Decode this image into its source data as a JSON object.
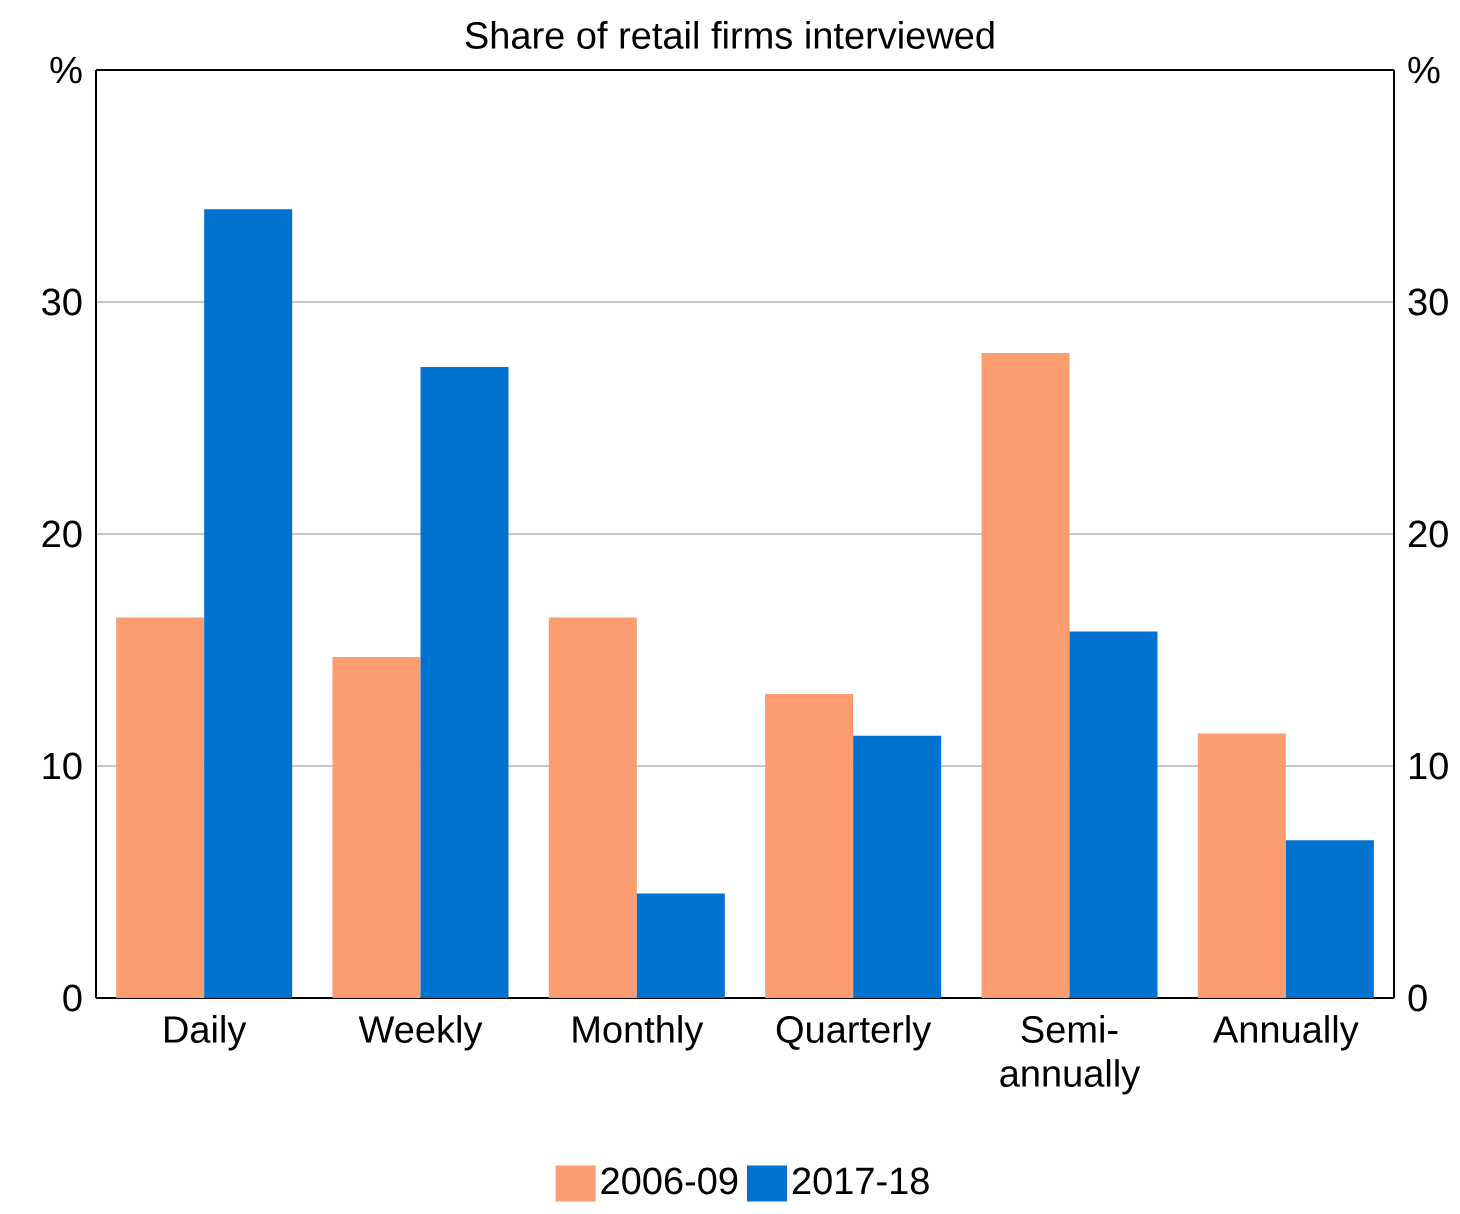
{
  "chart_data": {
    "type": "bar",
    "title": "Share of retail firms interviewed",
    "categories": [
      "Daily",
      "Weekly",
      "Monthly",
      "Quarterly",
      "Semi-annually",
      "Annually"
    ],
    "series": [
      {
        "name": "2006-09",
        "color": "#fb9d70",
        "values": [
          16.4,
          14.7,
          16.4,
          13.1,
          27.8,
          11.4
        ]
      },
      {
        "name": "2017-18",
        "color": "#0072cf",
        "values": [
          34.0,
          27.2,
          4.5,
          11.3,
          15.8,
          6.8
        ]
      }
    ],
    "ylim": [
      0,
      40
    ],
    "yticks": [
      0,
      10,
      20,
      30,
      {
        "value": 40,
        "label": "%"
      }
    ],
    "y2lim": [
      0,
      40
    ],
    "y2ticks": [
      0,
      10,
      20,
      30,
      {
        "value": 40,
        "label": "%"
      }
    ],
    "grid": "y",
    "legend": "bottom"
  }
}
